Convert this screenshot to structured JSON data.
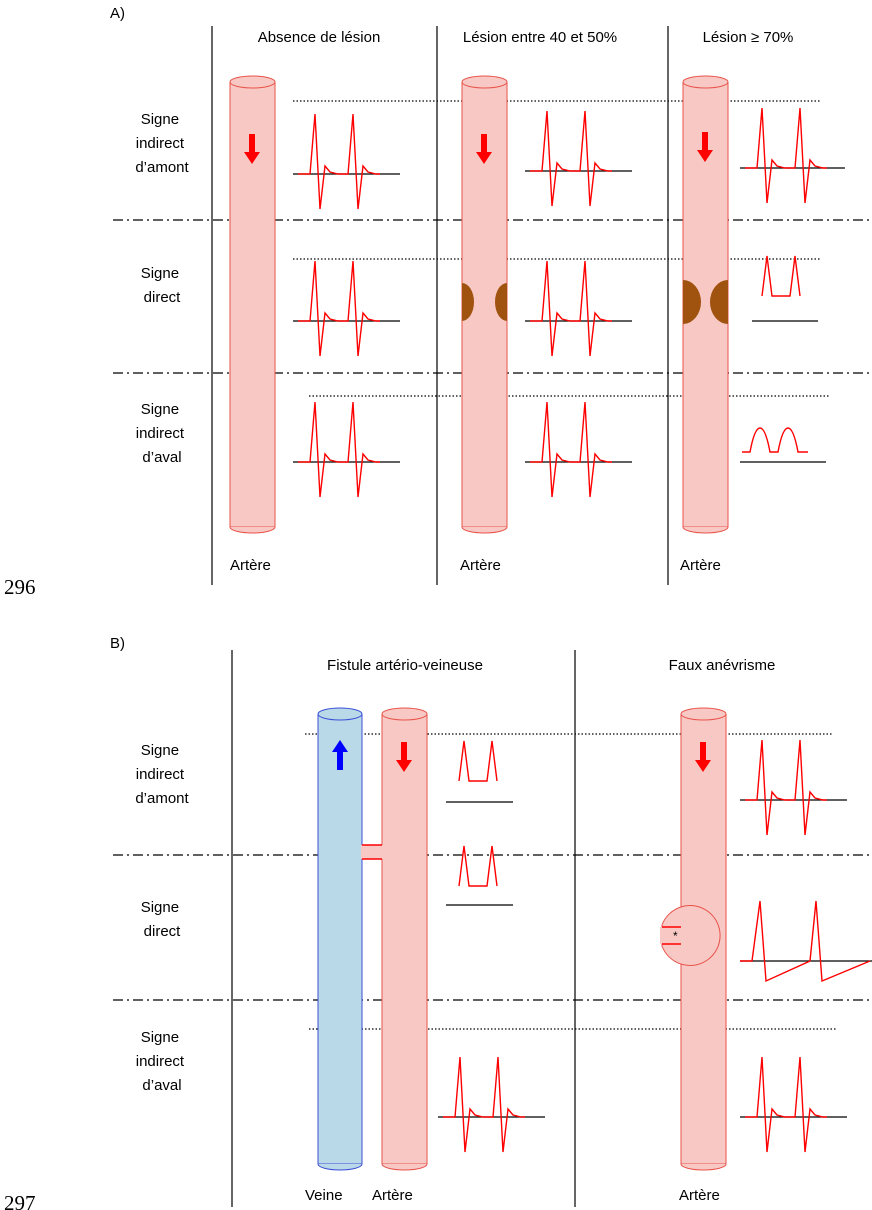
{
  "line_numbers": [
    "296",
    "297"
  ],
  "panel_a": {
    "label": "A)",
    "columns": [
      "Absence de lésion",
      "Lésion entre 40 et 50%",
      "Lésion ≥ 70%"
    ],
    "rows": [
      [
        "Signe",
        "indirect",
        "d’amont"
      ],
      [
        "Signe",
        "direct"
      ],
      [
        "Signe",
        "indirect",
        "d’aval"
      ]
    ],
    "vessel_labels": [
      "Artère",
      "Artère",
      "Artère"
    ]
  },
  "panel_b": {
    "label": "B)",
    "columns": [
      "Fistule artério-veineuse",
      "Faux anévrisme"
    ],
    "rows": [
      [
        "Signe",
        "indirect",
        "d’amont"
      ],
      [
        "Signe",
        "direct"
      ],
      [
        "Signe",
        "indirect",
        "d’aval"
      ]
    ],
    "vessel_labels": [
      "Veine",
      "Artère",
      "Artère"
    ],
    "aneurysm_mark": "*"
  },
  "colors": {
    "artery_fill": "#f8c9c4",
    "artery_stroke": "#e8524a",
    "vein_fill": "#b9d8e8",
    "vein_stroke": "#3a4fd8",
    "arrow_artery": "#ff0000",
    "arrow_vein": "#0000ff",
    "waveform": "#ff0000",
    "stenosis": "#a0520f"
  }
}
